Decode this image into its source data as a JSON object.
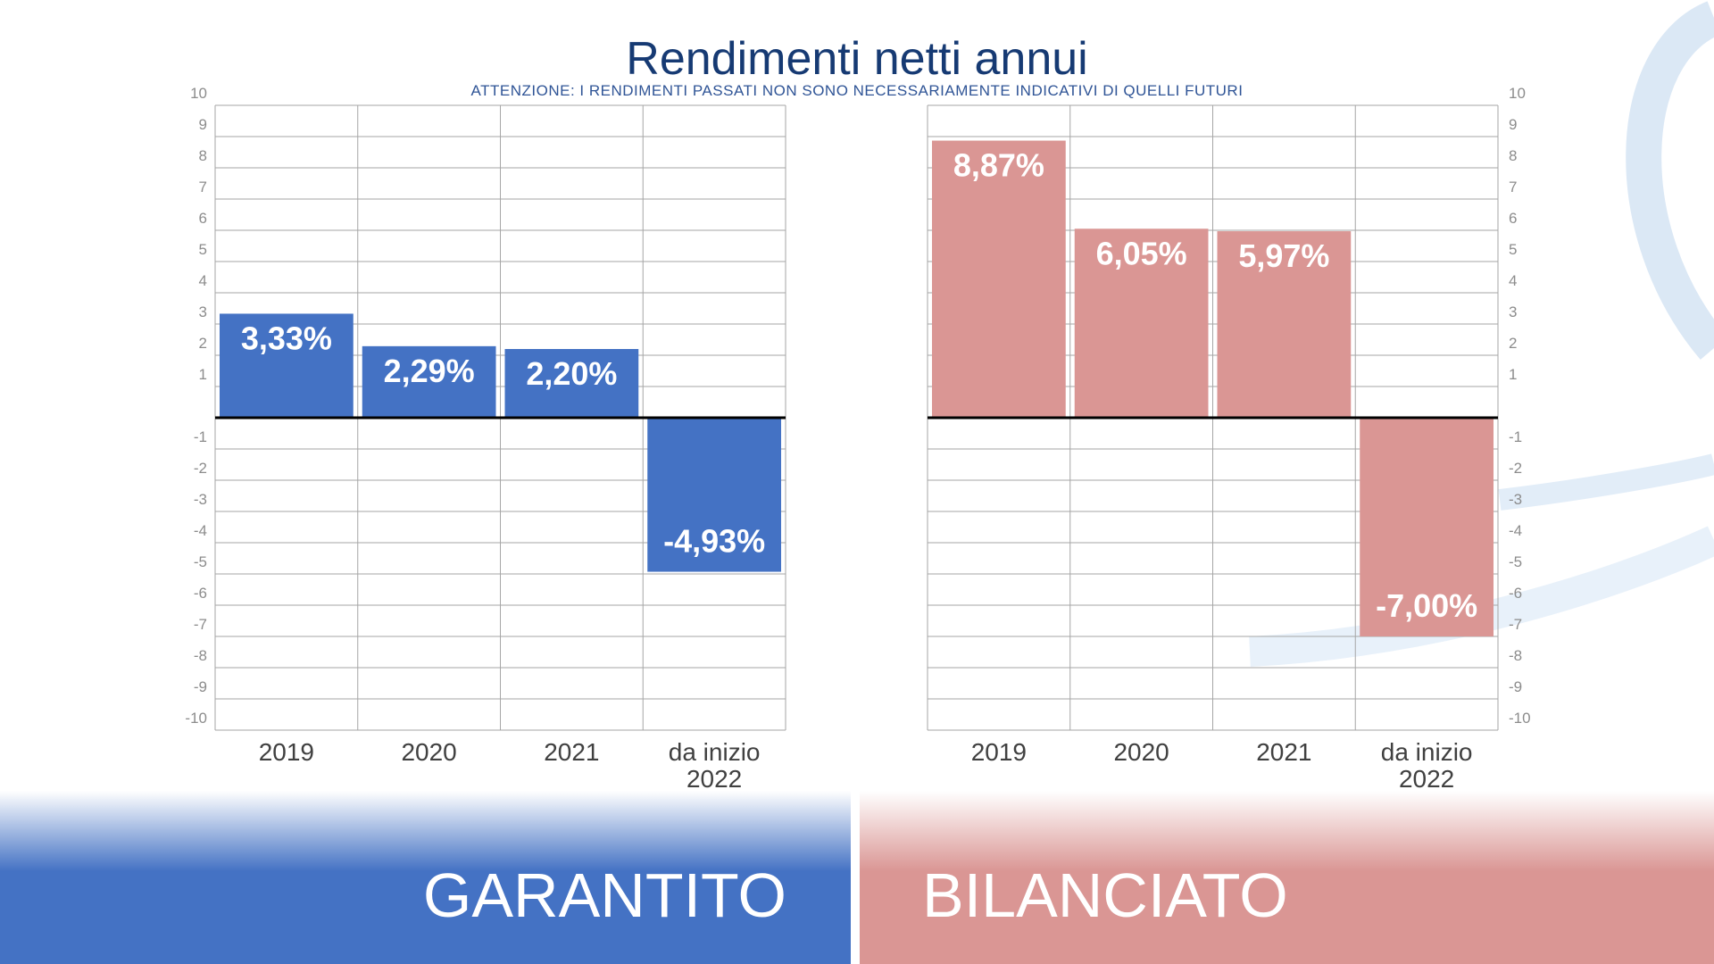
{
  "page": {
    "title": "Rendimenti netti annui",
    "subtitle": "ATTENZIONE: I RENDIMENTI PASSATI NON SONO NECESSARIAMENTE INDICATIVI DI QUELLI FUTURI"
  },
  "colors": {
    "title": "#163a73",
    "garantito": "#4472c4",
    "bilanciato": "#da9694",
    "grid": "#a6a6a6",
    "tick": "#8c8c8c",
    "decoration": "#dbe8f5"
  },
  "chart_data": [
    {
      "type": "bar",
      "name": "GARANTITO",
      "categories": [
        "2019",
        "2020",
        "2021",
        "da inizio\n2022"
      ],
      "values": [
        3.33,
        2.29,
        2.2,
        -4.93
      ],
      "labels": [
        "3,33%",
        "2,29%",
        "2,20%",
        "-4,93%"
      ],
      "ylim": [
        -10,
        10
      ],
      "yticks": [
        "10",
        "9",
        "8",
        "7",
        "6",
        "5",
        "4",
        "3",
        "2",
        "1",
        "-1",
        "-2",
        "-3",
        "-4",
        "-5",
        "-6",
        "-7",
        "-8",
        "-9",
        "-10"
      ],
      "ytick_side": "left",
      "grid": true,
      "color": "#4472c4"
    },
    {
      "type": "bar",
      "name": "BILANCIATO",
      "categories": [
        "2019",
        "2020",
        "2021",
        "da inizio\n2022"
      ],
      "values": [
        8.87,
        6.05,
        5.97,
        -7.0
      ],
      "labels": [
        "8,87%",
        "6,05%",
        "5,97%",
        "-7,00%"
      ],
      "ylim": [
        -10,
        10
      ],
      "yticks": [
        "10",
        "9",
        "8",
        "7",
        "6",
        "5",
        "4",
        "3",
        "2",
        "1",
        "-1",
        "-2",
        "-3",
        "-4",
        "-5",
        "-6",
        "-7",
        "-8",
        "-9",
        "-10"
      ],
      "ytick_side": "right",
      "grid": true,
      "color": "#da9694"
    }
  ],
  "bands": {
    "left_label": "GARANTITO",
    "right_label": "BILANCIATO"
  }
}
